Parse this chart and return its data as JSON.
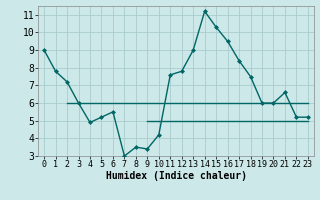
{
  "xlabel": "Humidex (Indice chaleur)",
  "bg_color": "#cce8e8",
  "grid_color": "#aacccc",
  "line_color": "#006666",
  "xlim": [
    -0.5,
    23.5
  ],
  "ylim": [
    3,
    11.5
  ],
  "yticks": [
    3,
    4,
    5,
    6,
    7,
    8,
    9,
    10,
    11
  ],
  "xticks": [
    0,
    1,
    2,
    3,
    4,
    5,
    6,
    7,
    8,
    9,
    10,
    11,
    12,
    13,
    14,
    15,
    16,
    17,
    18,
    19,
    20,
    21,
    22,
    23
  ],
  "line1_x": [
    0,
    1,
    2,
    3,
    4,
    5,
    6,
    7,
    8,
    9,
    10,
    11,
    12,
    13,
    14,
    15,
    16,
    17,
    18,
    19,
    20,
    21,
    22,
    23
  ],
  "line1_y": [
    9,
    7.8,
    7.2,
    6.0,
    4.9,
    5.2,
    5.5,
    3.0,
    3.5,
    3.4,
    4.2,
    7.6,
    7.8,
    9.0,
    11.2,
    10.3,
    9.5,
    8.4,
    7.5,
    6.0,
    6.0,
    6.6,
    5.2,
    5.2
  ],
  "line2_x": [
    2,
    23
  ],
  "line2_y": [
    6.0,
    6.0
  ],
  "line3_x": [
    9,
    23
  ],
  "line3_y": [
    5.0,
    5.0
  ],
  "xlabel_fontsize": 7,
  "tick_fontsize": 6,
  "linewidth": 1.0,
  "marker_size": 2.0
}
